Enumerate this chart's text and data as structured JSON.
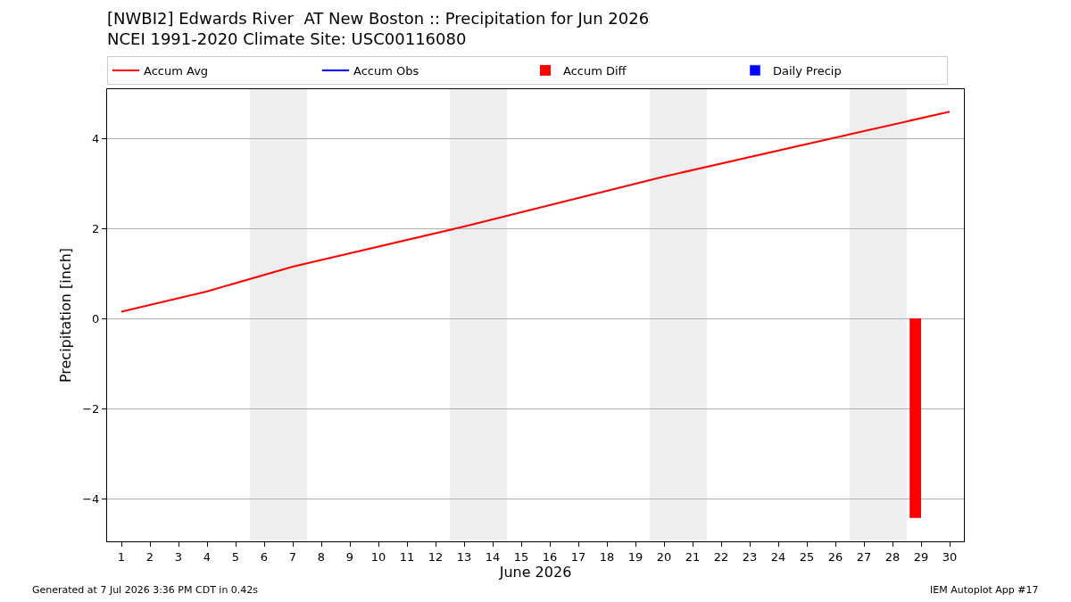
{
  "chart_data": {
    "type": "line",
    "title": "[NWBI2] Edwards River  AT New Boston :: Precipitation for Jun 2026",
    "subtitle": "NCEI 1991-2020 Climate Site: USC00116080",
    "xlabel": "June 2026",
    "ylabel": "Precipitation [inch]",
    "series": [
      {
        "name": "Accum Avg",
        "color": "#ff0000",
        "x": [
          1,
          4,
          7,
          13,
          20,
          27,
          30
        ],
        "values": [
          0.15,
          0.6,
          1.15,
          2.04,
          3.15,
          4.16,
          4.59
        ]
      },
      {
        "name": "Accum Obs",
        "color": "#0000ff"
      },
      {
        "name": "Accum Diff",
        "type": "bar",
        "color": "#ff0000",
        "x": [
          28.8
        ],
        "values": [
          -4.43
        ]
      },
      {
        "name": "Daily Precip",
        "type": "bar",
        "color": "#0000ff"
      }
    ],
    "xlim": [
      0.5,
      30.5
    ],
    "xticks": [
      1,
      2,
      3,
      4,
      5,
      6,
      7,
      8,
      9,
      10,
      11,
      12,
      13,
      14,
      15,
      16,
      17,
      18,
      19,
      20,
      21,
      22,
      23,
      24,
      25,
      26,
      27,
      28,
      29,
      30
    ],
    "ylim": [
      -4.95,
      5.09
    ],
    "yticks": [
      -4,
      -2,
      0,
      2,
      4
    ],
    "grid": "y",
    "legend": "top",
    "bands": [
      {
        "axis": "x",
        "from": 5.5,
        "to": 7.5,
        "color": "#eeeeee"
      },
      {
        "axis": "x",
        "from": 12.5,
        "to": 14.5,
        "color": "#eeeeee"
      },
      {
        "axis": "x",
        "from": 19.5,
        "to": 21.5,
        "color": "#eeeeee"
      },
      {
        "axis": "x",
        "from": 26.5,
        "to": 28.5,
        "color": "#eeeeee"
      }
    ],
    "annotations": [
      "Generated at 7 Jul 2026 3:36 PM CDT in 0.42s",
      "IEM Autoplot App #17"
    ]
  }
}
